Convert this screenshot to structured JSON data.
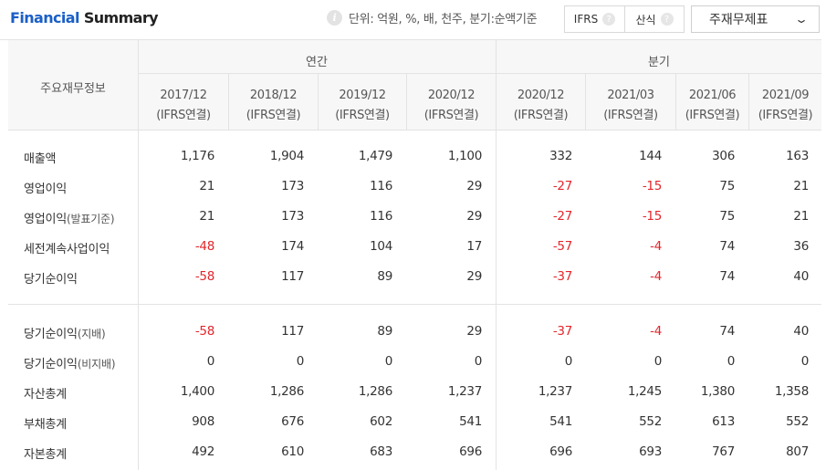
{
  "header": {
    "title_part1": "Financial",
    "title_part2": "Summary",
    "unit_text": "단위: 억원, %, 배, 천주, 분기:순액기준",
    "info_icon": "i",
    "toggle": {
      "ifrs_label": "IFRS",
      "formula_label": "산식",
      "help_icon": "?"
    },
    "select": {
      "value": "주재무제표",
      "chevron": "⌄"
    }
  },
  "table": {
    "corner_label": "주요재무정보",
    "groups": [
      {
        "label": "연간"
      },
      {
        "label": "분기"
      }
    ],
    "columns": [
      {
        "period": "2017/12",
        "basis": "(IFRS연결)"
      },
      {
        "period": "2018/12",
        "basis": "(IFRS연결)"
      },
      {
        "period": "2019/12",
        "basis": "(IFRS연결)"
      },
      {
        "period": "2020/12",
        "basis": "(IFRS연결)"
      },
      {
        "period": "2020/12",
        "basis": "(IFRS연결)"
      },
      {
        "period": "2021/03",
        "basis": "(IFRS연결)"
      },
      {
        "period": "2021/06",
        "basis": "(IFRS연결)"
      },
      {
        "period": "2021/09",
        "basis": "(IFRS연결)"
      }
    ],
    "rows": [
      {
        "label": "매출액",
        "sub": "",
        "values": [
          "1,176",
          "1,904",
          "1,479",
          "1,100",
          "332",
          "144",
          "306",
          "163"
        ]
      },
      {
        "label": "영업이익",
        "sub": "",
        "values": [
          "21",
          "173",
          "116",
          "29",
          "-27",
          "-15",
          "75",
          "21"
        ]
      },
      {
        "label": "영업이익",
        "sub": "(발표기준)",
        "values": [
          "21",
          "173",
          "116",
          "29",
          "-27",
          "-15",
          "75",
          "21"
        ]
      },
      {
        "label": "세전계속사업이익",
        "sub": "",
        "values": [
          "-48",
          "174",
          "104",
          "17",
          "-57",
          "-4",
          "74",
          "36"
        ]
      },
      {
        "label": "당기순이익",
        "sub": "",
        "values": [
          "-58",
          "117",
          "89",
          "29",
          "-37",
          "-4",
          "74",
          "40"
        ]
      },
      {
        "label": "당기순이익",
        "sub": "(지배)",
        "values": [
          "-58",
          "117",
          "89",
          "29",
          "-37",
          "-4",
          "74",
          "40"
        ]
      },
      {
        "label": "당기순이익",
        "sub": "(비지배)",
        "values": [
          "0",
          "0",
          "0",
          "0",
          "0",
          "0",
          "0",
          "0"
        ]
      },
      {
        "label": "자산총계",
        "sub": "",
        "values": [
          "1,400",
          "1,286",
          "1,286",
          "1,237",
          "1,237",
          "1,245",
          "1,380",
          "1,358"
        ]
      },
      {
        "label": "부채총계",
        "sub": "",
        "values": [
          "908",
          "676",
          "602",
          "541",
          "541",
          "552",
          "613",
          "552"
        ]
      },
      {
        "label": "자본총계",
        "sub": "",
        "values": [
          "492",
          "610",
          "683",
          "696",
          "696",
          "693",
          "767",
          "807"
        ]
      }
    ],
    "negative_color": "#e3262b",
    "title_accent_color": "#1a5fc7"
  }
}
